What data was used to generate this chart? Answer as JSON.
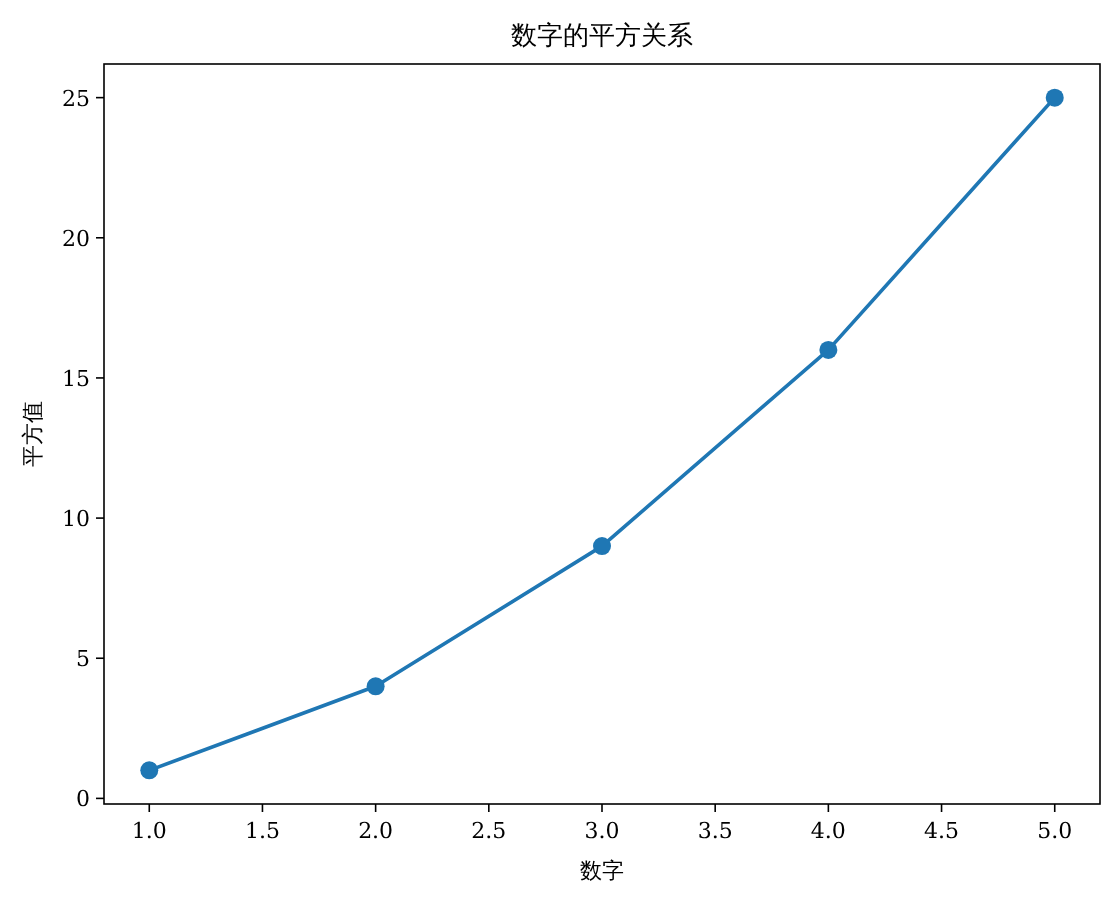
{
  "chart_data": {
    "type": "line",
    "title": "数字的平方关系",
    "xlabel": "数字",
    "ylabel": "平方值",
    "x": [
      1,
      2,
      3,
      4,
      5
    ],
    "values": [
      1,
      4,
      9,
      16,
      25
    ],
    "color": "#1f77b4",
    "marker": "circle",
    "line_style": "solid",
    "xlim": [
      0.8,
      5.2
    ],
    "ylim": [
      -0.2,
      26.2
    ],
    "xticks": [
      {
        "value": 1,
        "label": "1.0"
      },
      {
        "value": 1.5,
        "label": "1.5"
      },
      {
        "value": 2,
        "label": "2.0"
      },
      {
        "value": 2.5,
        "label": "2.5"
      },
      {
        "value": 3,
        "label": "3.0"
      },
      {
        "value": 3.5,
        "label": "3.5"
      },
      {
        "value": 4,
        "label": "4.0"
      },
      {
        "value": 4.5,
        "label": "4.5"
      },
      {
        "value": 5,
        "label": "5.0"
      }
    ],
    "yticks": [
      0,
      5,
      10,
      15,
      20,
      25
    ]
  }
}
